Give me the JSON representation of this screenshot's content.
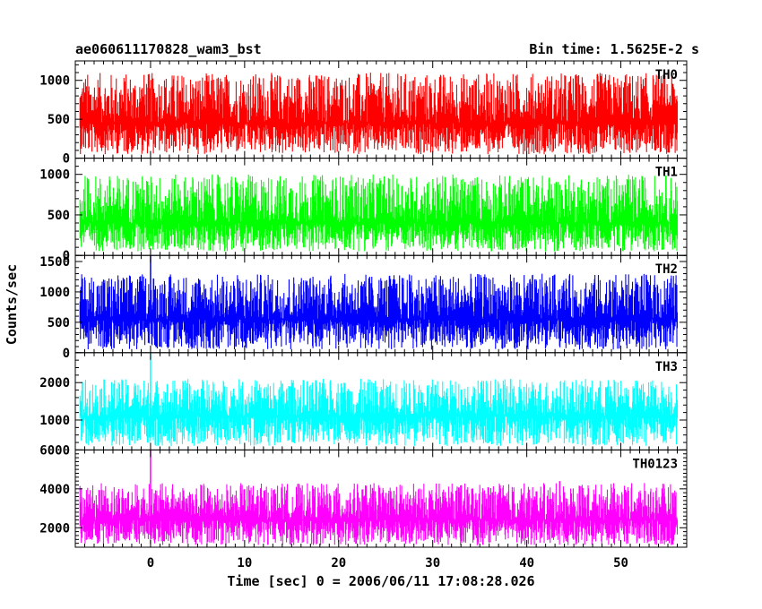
{
  "chart_data": {
    "type": "line",
    "title": "ae060611170828_wam3_bst",
    "subtitle": "Bin time: 1.5625E-2 s",
    "xlabel": "Time [sec] 0 = 2006/06/11 17:08:28.026",
    "ylabel": "Counts/sec",
    "xlim": [
      -8,
      57
    ],
    "x_ticks": [
      0,
      10,
      20,
      30,
      40,
      50
    ],
    "data_x_range": [
      -7.5,
      56
    ],
    "panels": [
      {
        "name": "TH0",
        "color": "#ff0000",
        "ylim": [
          0,
          1250
        ],
        "y_ticks": [
          0,
          500,
          1000
        ],
        "baseline": 450,
        "noise_low": 50,
        "noise_high": 1100,
        "spikes": []
      },
      {
        "name": "TH1",
        "color": "#00ff00",
        "ylim": [
          0,
          1200
        ],
        "y_ticks": [
          0,
          500,
          1000
        ],
        "baseline": 400,
        "noise_low": 50,
        "noise_high": 1000,
        "spikes": []
      },
      {
        "name": "TH2",
        "color": "#0000ff",
        "ylim": [
          0,
          1600
        ],
        "y_ticks": [
          0,
          500,
          1000,
          1500
        ],
        "baseline": 550,
        "noise_low": 50,
        "noise_high": 1300,
        "spikes": [
          {
            "x": 0,
            "y": 1600
          }
        ]
      },
      {
        "name": "TH3",
        "color": "#00ffff",
        "ylim": [
          200,
          2800
        ],
        "y_ticks": [
          1000,
          2000
        ],
        "baseline": 1100,
        "noise_low": 300,
        "noise_high": 2100,
        "spikes": [
          {
            "x": 0,
            "y": 2800
          }
        ]
      },
      {
        "name": "TH0123",
        "color": "#ff00ff",
        "ylim": [
          1000,
          6000
        ],
        "y_ticks": [
          2000,
          4000,
          6000
        ],
        "baseline": 2400,
        "noise_low": 1100,
        "noise_high": 4300,
        "spikes": [
          {
            "x": 0,
            "y": 6000
          },
          {
            "x": 43.5,
            "y": 4400
          }
        ]
      }
    ]
  }
}
